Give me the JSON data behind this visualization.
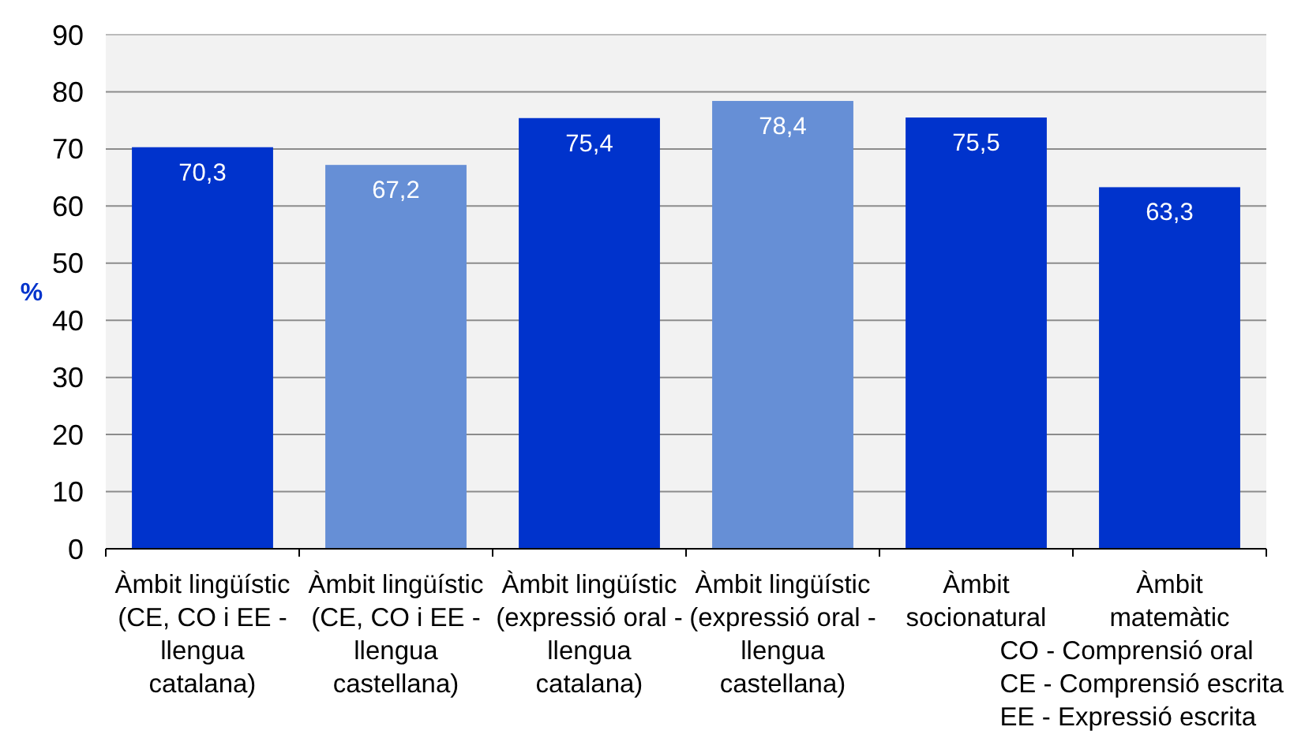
{
  "chart_data": {
    "type": "bar",
    "categories": [
      "Àmbit lingüístic (CE, CO i EE - llengua catalana)",
      "Àmbit lingüístic (CE, CO i EE - llengua castellana)",
      "Àmbit lingüístic (expressió oral - llengua catalana)",
      "Àmbit lingüístic (expressió oral - llengua castellana)",
      "Àmbit socionatural",
      "Àmbit matemàtic"
    ],
    "values": [
      70.3,
      67.2,
      75.4,
      78.4,
      75.5,
      63.3
    ],
    "colors": [
      "#0033cc",
      "#668fd6",
      "#0033cc",
      "#668fd6",
      "#0033cc",
      "#0033cc"
    ],
    "value_labels": [
      "70,3",
      "67,2",
      "75,4",
      "78,4",
      "75,5",
      "63,3"
    ],
    "ylabel": "%",
    "ylim": [
      0,
      90
    ],
    "yticks": [
      0,
      10,
      20,
      30,
      40,
      50,
      60,
      70,
      80,
      90
    ],
    "grid": "y",
    "annotations": [
      "CO - Comprensió oral",
      "CE - Comprensió escrita",
      "EE - Expressió escrita"
    ]
  }
}
